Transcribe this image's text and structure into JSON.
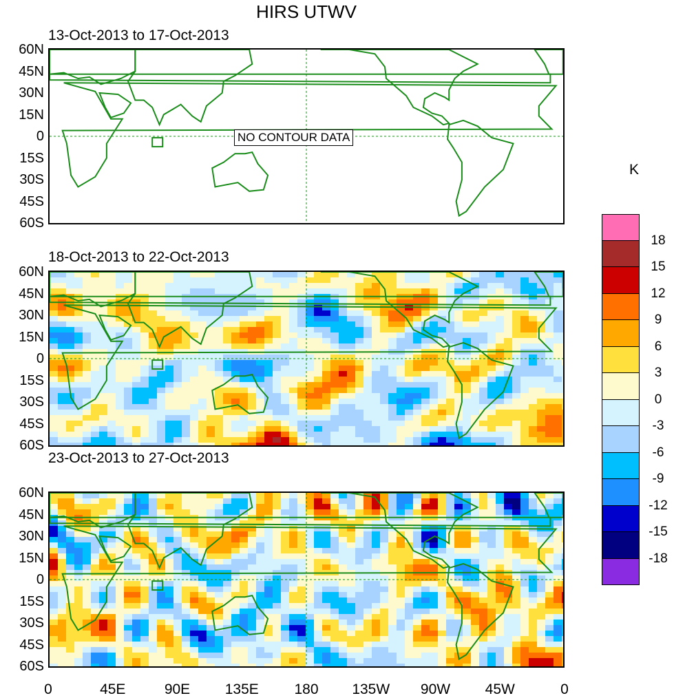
{
  "title": "HIRS UTWV",
  "panels": [
    {
      "date_range": "13-Oct-2013 to 17-Oct-2013",
      "note": "NO CONTOUR DATA",
      "field": "empty"
    },
    {
      "date_range": "18-Oct-2013 to 22-Oct-2013",
      "field": "anomaly"
    },
    {
      "date_range": "23-Oct-2013 to 27-Oct-2013",
      "field": "anomaly"
    }
  ],
  "lat_labels": [
    "60N",
    "45N",
    "30N",
    "15N",
    "0",
    "15S",
    "30S",
    "45S",
    "60S"
  ],
  "lon_labels": [
    "0",
    "45E",
    "90E",
    "135E",
    "180",
    "135W",
    "90W",
    "45W",
    "0"
  ],
  "colorbar": {
    "units": "K",
    "labels": [
      "18",
      "15",
      "12",
      "9",
      "6",
      "3",
      "0",
      "-3",
      "-6",
      "-9",
      "-12",
      "-15",
      "-18"
    ],
    "colors": [
      "#ff6eb4",
      "#a52a2a",
      "#cd0000",
      "#ff7000",
      "#ffa800",
      "#ffe03c",
      "#fffacd",
      "#d4f3ff",
      "#a8d2ff",
      "#00bfff",
      "#1e90ff",
      "#0000cd",
      "#000080",
      "#8a2be2"
    ]
  }
}
